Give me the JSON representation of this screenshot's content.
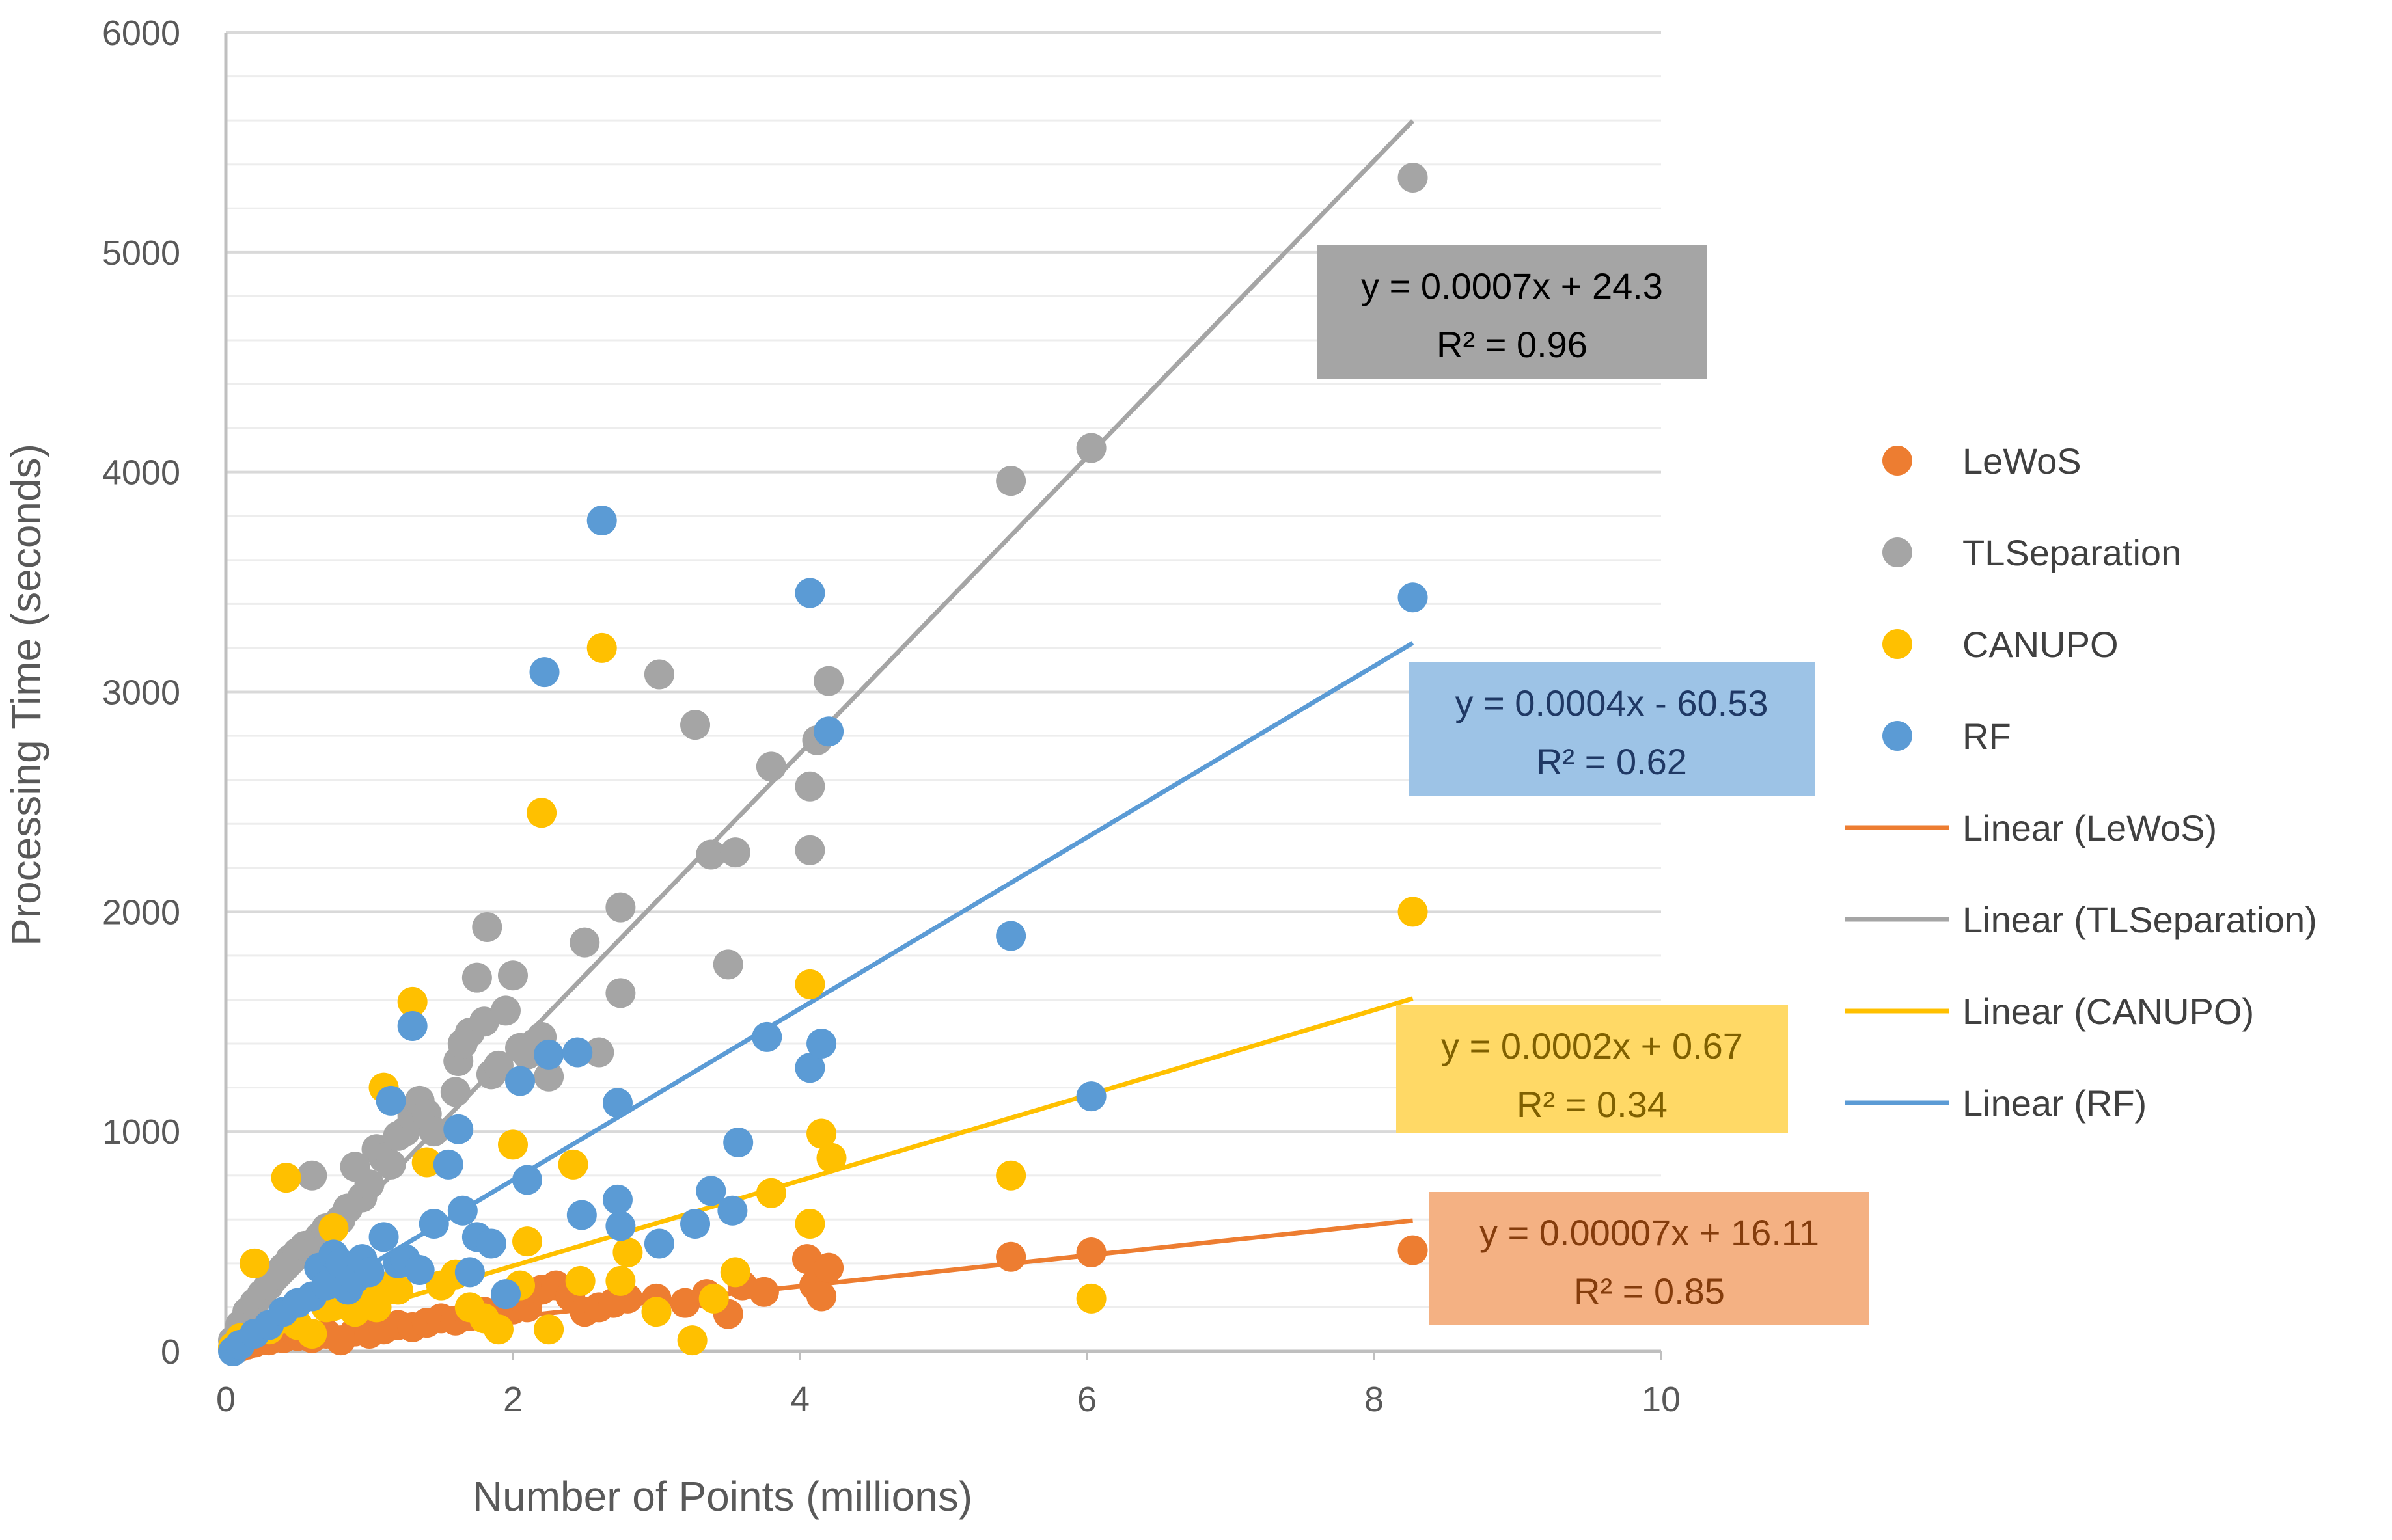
{
  "chart_data": {
    "type": "scatter",
    "title": "",
    "xlabel": "Number of Points (millions)",
    "ylabel": "Processing Time (seconds)",
    "xlim": [
      0,
      10
    ],
    "ylim": [
      0,
      6000
    ],
    "x_ticks": [
      "0",
      "2",
      "4",
      "6",
      "8",
      "10"
    ],
    "y_ticks": [
      "0",
      "1000",
      "2000",
      "3000",
      "4000",
      "5000",
      "6000"
    ],
    "x_tick_values": [
      0,
      2,
      4,
      6,
      8,
      10
    ],
    "y_tick_values": [
      0,
      1000,
      2000,
      3000,
      4000,
      5000,
      6000
    ],
    "grid": "horizontal",
    "legend_position": "right",
    "series": [
      {
        "name": "LeWoS",
        "color": "#ED7D31",
        "points": [
          [
            0.05,
            10
          ],
          [
            0.1,
            20
          ],
          [
            0.15,
            30
          ],
          [
            0.2,
            40
          ],
          [
            0.3,
            50
          ],
          [
            0.4,
            60
          ],
          [
            0.5,
            70
          ],
          [
            0.6,
            60
          ],
          [
            0.7,
            80
          ],
          [
            0.8,
            50
          ],
          [
            0.9,
            90
          ],
          [
            1.0,
            80
          ],
          [
            1.1,
            100
          ],
          [
            1.2,
            120
          ],
          [
            1.3,
            110
          ],
          [
            1.4,
            130
          ],
          [
            1.5,
            150
          ],
          [
            1.6,
            140
          ],
          [
            1.7,
            160
          ],
          [
            1.8,
            180
          ],
          [
            1.9,
            170
          ],
          [
            2.0,
            190
          ],
          [
            2.1,
            200
          ],
          [
            2.2,
            280
          ],
          [
            2.3,
            300
          ],
          [
            2.4,
            250
          ],
          [
            2.5,
            180
          ],
          [
            2.6,
            200
          ],
          [
            2.7,
            220
          ],
          [
            2.8,
            240
          ],
          [
            3.0,
            240
          ],
          [
            3.2,
            220
          ],
          [
            3.35,
            260
          ],
          [
            3.5,
            170
          ],
          [
            3.6,
            300
          ],
          [
            3.75,
            270
          ],
          [
            4.05,
            420
          ],
          [
            4.1,
            300
          ],
          [
            4.15,
            250
          ],
          [
            4.2,
            380
          ],
          [
            5.47,
            430
          ],
          [
            6.03,
            450
          ],
          [
            8.27,
            460
          ]
        ]
      },
      {
        "name": "TLSeparation",
        "color": "#A5A5A5",
        "points": [
          [
            0.05,
            50
          ],
          [
            0.1,
            120
          ],
          [
            0.15,
            180
          ],
          [
            0.2,
            220
          ],
          [
            0.25,
            260
          ],
          [
            0.3,
            300
          ],
          [
            0.35,
            350
          ],
          [
            0.4,
            380
          ],
          [
            0.45,
            420
          ],
          [
            0.5,
            450
          ],
          [
            0.55,
            480
          ],
          [
            0.6,
            800
          ],
          [
            0.65,
            520
          ],
          [
            0.7,
            560
          ],
          [
            0.8,
            600
          ],
          [
            0.85,
            650
          ],
          [
            0.9,
            840
          ],
          [
            0.95,
            700
          ],
          [
            1.0,
            760
          ],
          [
            1.05,
            920
          ],
          [
            1.1,
            880
          ],
          [
            1.15,
            850
          ],
          [
            1.2,
            980
          ],
          [
            1.25,
            1000
          ],
          [
            1.3,
            1070
          ],
          [
            1.35,
            1140
          ],
          [
            1.4,
            1080
          ],
          [
            1.45,
            1000
          ],
          [
            1.6,
            1180
          ],
          [
            1.62,
            1320
          ],
          [
            1.65,
            1400
          ],
          [
            1.7,
            1450
          ],
          [
            1.75,
            1700
          ],
          [
            1.8,
            1500
          ],
          [
            1.82,
            1930
          ],
          [
            1.85,
            1260
          ],
          [
            1.9,
            1300
          ],
          [
            1.95,
            1550
          ],
          [
            2.0,
            1710
          ],
          [
            2.05,
            1380
          ],
          [
            2.1,
            1350
          ],
          [
            2.15,
            1400
          ],
          [
            2.2,
            1430
          ],
          [
            2.25,
            1250
          ],
          [
            2.5,
            1860
          ],
          [
            2.6,
            1360
          ],
          [
            2.75,
            2020
          ],
          [
            2.75,
            1630
          ],
          [
            3.02,
            3080
          ],
          [
            3.27,
            2850
          ],
          [
            3.38,
            2260
          ],
          [
            3.55,
            2270
          ],
          [
            3.5,
            1760
          ],
          [
            3.8,
            2660
          ],
          [
            4.07,
            2570
          ],
          [
            4.07,
            2280
          ],
          [
            4.12,
            2780
          ],
          [
            4.2,
            3050
          ],
          [
            5.47,
            3960
          ],
          [
            6.03,
            4110
          ],
          [
            8.27,
            5340
          ]
        ]
      },
      {
        "name": "CANUPO",
        "color": "#FFC000",
        "points": [
          [
            0.05,
            20
          ],
          [
            0.1,
            60
          ],
          [
            0.2,
            400
          ],
          [
            0.3,
            100
          ],
          [
            0.4,
            150
          ],
          [
            0.42,
            790
          ],
          [
            0.5,
            120
          ],
          [
            0.6,
            80
          ],
          [
            0.7,
            200
          ],
          [
            0.75,
            560
          ],
          [
            0.8,
            220
          ],
          [
            0.9,
            180
          ],
          [
            1.0,
            250
          ],
          [
            1.05,
            200
          ],
          [
            1.1,
            1200
          ],
          [
            1.15,
            300
          ],
          [
            1.2,
            280
          ],
          [
            1.3,
            1590
          ],
          [
            1.4,
            860
          ],
          [
            1.5,
            300
          ],
          [
            1.6,
            350
          ],
          [
            1.7,
            200
          ],
          [
            1.8,
            150
          ],
          [
            1.9,
            100
          ],
          [
            2.0,
            940
          ],
          [
            2.05,
            300
          ],
          [
            2.1,
            500
          ],
          [
            2.2,
            2450
          ],
          [
            2.25,
            100
          ],
          [
            2.42,
            850
          ],
          [
            2.47,
            320
          ],
          [
            2.62,
            3200
          ],
          [
            2.75,
            320
          ],
          [
            2.8,
            450
          ],
          [
            3.0,
            180
          ],
          [
            3.25,
            50
          ],
          [
            3.4,
            240
          ],
          [
            3.55,
            360
          ],
          [
            3.8,
            720
          ],
          [
            4.07,
            1670
          ],
          [
            4.07,
            580
          ],
          [
            4.15,
            990
          ],
          [
            4.22,
            880
          ],
          [
            5.47,
            800
          ],
          [
            6.03,
            240
          ],
          [
            8.27,
            2000
          ]
        ]
      },
      {
        "name": "RF",
        "color": "#5B9BD5",
        "points": [
          [
            0.05,
            0
          ],
          [
            0.1,
            30
          ],
          [
            0.2,
            80
          ],
          [
            0.3,
            120
          ],
          [
            0.4,
            180
          ],
          [
            0.5,
            220
          ],
          [
            0.6,
            250
          ],
          [
            0.65,
            380
          ],
          [
            0.7,
            300
          ],
          [
            0.75,
            440
          ],
          [
            0.8,
            400
          ],
          [
            0.85,
            280
          ],
          [
            0.9,
            330
          ],
          [
            0.95,
            420
          ],
          [
            1.0,
            360
          ],
          [
            1.1,
            520
          ],
          [
            1.15,
            1140
          ],
          [
            1.2,
            400
          ],
          [
            1.25,
            420
          ],
          [
            1.3,
            1480
          ],
          [
            1.35,
            370
          ],
          [
            1.45,
            580
          ],
          [
            1.55,
            850
          ],
          [
            1.62,
            1010
          ],
          [
            1.65,
            640
          ],
          [
            1.7,
            360
          ],
          [
            1.75,
            520
          ],
          [
            1.85,
            490
          ],
          [
            1.95,
            260
          ],
          [
            2.05,
            1230
          ],
          [
            2.1,
            780
          ],
          [
            2.22,
            3090
          ],
          [
            2.25,
            1350
          ],
          [
            2.45,
            1360
          ],
          [
            2.48,
            620
          ],
          [
            2.62,
            3780
          ],
          [
            2.73,
            1130
          ],
          [
            2.73,
            690
          ],
          [
            2.75,
            570
          ],
          [
            3.02,
            490
          ],
          [
            3.27,
            580
          ],
          [
            3.38,
            730
          ],
          [
            3.53,
            640
          ],
          [
            3.57,
            950
          ],
          [
            3.77,
            1430
          ],
          [
            4.07,
            3450
          ],
          [
            4.07,
            1290
          ],
          [
            4.15,
            1400
          ],
          [
            4.2,
            2820
          ],
          [
            5.47,
            1890
          ],
          [
            6.03,
            1160
          ],
          [
            8.27,
            3430
          ]
        ]
      }
    ],
    "trendlines": [
      {
        "name": "Linear (LeWoS)",
        "color": "#ED7D31",
        "slope_per_million": 70,
        "intercept": 16.11,
        "x_range": [
          0,
          8.27
        ],
        "equation": "y = 0.00007x + 16.11",
        "r2": "R² = 0.85",
        "box_color": "#F4B183",
        "text_color": "#843C0C"
      },
      {
        "name": "Linear (TLSeparation)",
        "color": "#A5A5A5",
        "slope_per_million": 674,
        "intercept": 24.3,
        "x_range": [
          0,
          8.27
        ],
        "equation": "y = 0.0007x + 24.3",
        "r2": "R² = 0.96",
        "box_color": "#A5A5A5",
        "text_color": "#000000"
      },
      {
        "name": "Linear (CANUPO)",
        "color": "#FFC000",
        "slope_per_million": 194,
        "intercept": 0.67,
        "x_range": [
          0,
          8.27
        ],
        "equation": "y = 0.0002x + 0.67",
        "r2": "R² = 0.34",
        "box_color": "#FFD966",
        "text_color": "#7F6000"
      },
      {
        "name": "Linear (RF)",
        "color": "#5B9BD5",
        "slope_per_million": 397,
        "intercept": -60.53,
        "x_range": [
          0,
          8.27
        ],
        "equation": "y = 0.0004x - 60.53",
        "r2": "R² = 0.62",
        "box_color": "#9DC3E6",
        "text_color": "#1F3864"
      }
    ],
    "legend": [
      "LeWoS",
      "TLSeparation",
      "CANUPO",
      "RF",
      "Linear (LeWoS)",
      "Linear (TLSeparation)",
      "Linear (CANUPO)",
      "Linear (RF)"
    ]
  }
}
